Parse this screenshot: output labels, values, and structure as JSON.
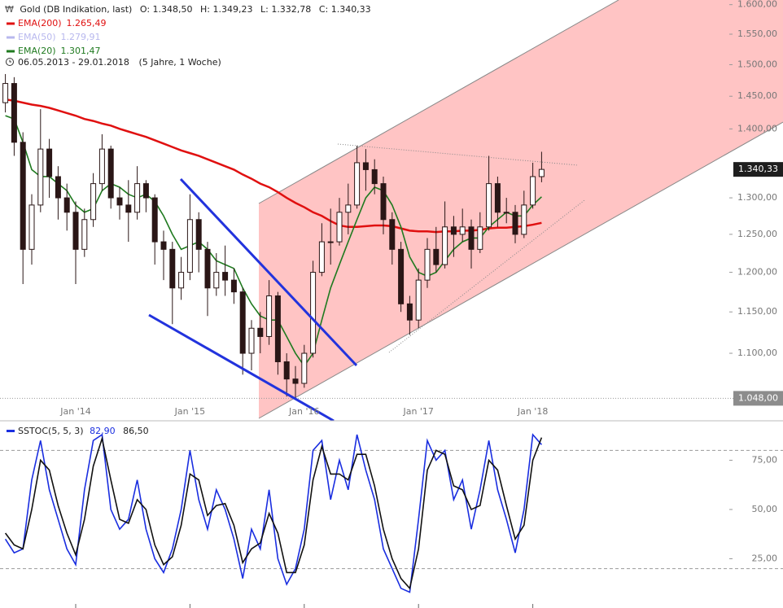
{
  "chart_data": [
    {
      "type": "candlestick",
      "title": "Gold (DB Indikation, last)",
      "quote_texts": [
        "O: 1.348,50",
        "H: 1.349,23",
        "L: 1.332,78",
        "C: 1.340,33"
      ],
      "period": "06.05.2013 - 29.01.2018",
      "period_note": "(5 Jahre, 1 Woche)",
      "categories": [
        null,
        null,
        null,
        null,
        null,
        null,
        null,
        null,
        "Jan '14",
        null,
        null,
        null,
        null,
        null,
        null,
        null,
        null,
        null,
        null,
        null,
        null,
        "Jan '15",
        null,
        null,
        null,
        null,
        null,
        null,
        null,
        null,
        null,
        null,
        null,
        null,
        "Jan '16",
        null,
        null,
        null,
        null,
        null,
        null,
        null,
        null,
        null,
        null,
        null,
        null,
        "Jan '17",
        null,
        null,
        null,
        null,
        null,
        null,
        null,
        null,
        null,
        null,
        null,
        null,
        "Jan '18",
        null
      ],
      "open": [
        1440,
        1470,
        1380,
        1230,
        1290,
        1370,
        1330,
        1300,
        1280,
        1230,
        1270,
        1320,
        1370,
        1300,
        1290,
        1280,
        1320,
        1300,
        1240,
        1230,
        1180,
        1200,
        1270,
        1230,
        1180,
        1200,
        1190,
        1175,
        1100,
        1130,
        1120,
        1170,
        1090,
        1070,
        1065,
        1100,
        1200,
        1240,
        1240,
        1280,
        1290,
        1350,
        1340,
        1320,
        1270,
        1230,
        1160,
        1140,
        1190,
        1230,
        1210,
        1260,
        1250,
        1260,
        1230,
        1260,
        1320,
        1280,
        1280,
        1250,
        1290,
        1330
      ],
      "high": [
        1485,
        1480,
        1395,
        1305,
        1430,
        1385,
        1345,
        1320,
        1295,
        1285,
        1335,
        1392,
        1375,
        1315,
        1325,
        1345,
        1325,
        1305,
        1255,
        1240,
        1220,
        1305,
        1280,
        1240,
        1225,
        1235,
        1205,
        1180,
        1140,
        1150,
        1190,
        1175,
        1100,
        1085,
        1110,
        1215,
        1265,
        1285,
        1300,
        1320,
        1375,
        1370,
        1355,
        1330,
        1280,
        1240,
        1170,
        1205,
        1245,
        1260,
        1295,
        1275,
        1285,
        1270,
        1280,
        1360,
        1330,
        1300,
        1290,
        1310,
        1350,
        1366
      ],
      "low": [
        1425,
        1360,
        1185,
        1210,
        1280,
        1300,
        1270,
        1255,
        1185,
        1220,
        1260,
        1310,
        1285,
        1270,
        1240,
        1270,
        1280,
        1210,
        1190,
        1135,
        1165,
        1190,
        1200,
        1145,
        1170,
        1170,
        1160,
        1075,
        1080,
        1100,
        1110,
        1075,
        1050,
        1048,
        1060,
        1095,
        1195,
        1210,
        1235,
        1250,
        1285,
        1310,
        1305,
        1250,
        1210,
        1150,
        1122,
        1130,
        1180,
        1200,
        1205,
        1220,
        1240,
        1205,
        1225,
        1255,
        1260,
        1265,
        1238,
        1245,
        1285,
        1322
      ],
      "close": [
        1470,
        1380,
        1230,
        1290,
        1370,
        1330,
        1300,
        1280,
        1230,
        1270,
        1320,
        1370,
        1300,
        1290,
        1280,
        1320,
        1300,
        1240,
        1230,
        1180,
        1200,
        1270,
        1230,
        1180,
        1200,
        1190,
        1175,
        1100,
        1130,
        1120,
        1170,
        1090,
        1070,
        1065,
        1100,
        1200,
        1240,
        1240,
        1280,
        1290,
        1350,
        1340,
        1320,
        1270,
        1230,
        1160,
        1140,
        1190,
        1230,
        1210,
        1260,
        1250,
        1260,
        1230,
        1260,
        1320,
        1280,
        1280,
        1250,
        1290,
        1330,
        1340.33
      ],
      "up_color": "#ffffff",
      "down_color": "#2a1616",
      "wick_color": "#2a1616",
      "series": [
        {
          "name": "EMA(200)",
          "color": "#e01010",
          "last_label": "1.265,49",
          "values": [
            1445,
            1443,
            1440,
            1437,
            1435,
            1432,
            1428,
            1424,
            1420,
            1415,
            1412,
            1408,
            1405,
            1400,
            1396,
            1392,
            1388,
            1383,
            1378,
            1373,
            1368,
            1364,
            1360,
            1355,
            1350,
            1345,
            1340,
            1333,
            1327,
            1320,
            1315,
            1308,
            1300,
            1293,
            1287,
            1280,
            1275,
            1268,
            1262,
            1260,
            1260,
            1261,
            1262,
            1262,
            1261,
            1258,
            1255,
            1254,
            1254,
            1253,
            1254,
            1254,
            1255,
            1255,
            1256,
            1258,
            1259,
            1259,
            1260,
            1261,
            1263,
            1265.49
          ]
        },
        {
          "name": "EMA(50)",
          "color": "#b8b8ee",
          "last_label": "1.279,91"
        },
        {
          "name": "EMA(20)",
          "color": "#1f7a1f",
          "last_label": "1.301,47",
          "values": [
            1420,
            1415,
            1380,
            1340,
            1330,
            1330,
            1320,
            1310,
            1290,
            1280,
            1285,
            1310,
            1320,
            1315,
            1305,
            1300,
            1305,
            1295,
            1275,
            1250,
            1230,
            1235,
            1240,
            1230,
            1215,
            1210,
            1205,
            1180,
            1160,
            1145,
            1140,
            1140,
            1120,
            1100,
            1085,
            1100,
            1140,
            1180,
            1210,
            1240,
            1270,
            1300,
            1315,
            1310,
            1290,
            1260,
            1220,
            1200,
            1195,
            1200,
            1215,
            1230,
            1240,
            1245,
            1245,
            1260,
            1270,
            1280,
            1275,
            1275,
            1290,
            1301.47
          ]
        }
      ],
      "log_scale": true,
      "ylim": [
        1023,
        1608
      ],
      "yticks": [
        {
          "value": 1100,
          "label": "1.100,00"
        },
        {
          "value": 1150,
          "label": "1.150,00"
        },
        {
          "value": 1200,
          "label": "1.200,00"
        },
        {
          "value": 1250,
          "label": "1.250,00"
        },
        {
          "value": 1300,
          "label": "1.300,00"
        },
        {
          "value": 1400,
          "label": "1.400,00"
        },
        {
          "value": 1450,
          "label": "1.450,00"
        },
        {
          "value": 1500,
          "label": "1.500,00"
        },
        {
          "value": 1550,
          "label": "1.550,00"
        },
        {
          "value": 1600,
          "label": "1.600,00"
        }
      ],
      "last_price": {
        "value": 1340.33,
        "label": "1.340,33"
      },
      "low_line": {
        "value": 1048,
        "label": "1.048,00"
      }
    },
    {
      "type": "line",
      "series": [
        {
          "name": "SSTOC(5, 5, 3)",
          "color": "#1a2ee0",
          "last_label": "82,90",
          "values": [
            35,
            28,
            30,
            65,
            85,
            60,
            45,
            30,
            22,
            60,
            85,
            88,
            50,
            40,
            45,
            65,
            40,
            25,
            18,
            30,
            50,
            80,
            55,
            40,
            60,
            50,
            35,
            15,
            40,
            30,
            60,
            25,
            12,
            20,
            40,
            80,
            85,
            55,
            75,
            60,
            88,
            70,
            55,
            30,
            20,
            10,
            8,
            45,
            85,
            75,
            80,
            55,
            65,
            40,
            60,
            85,
            60,
            45,
            28,
            50,
            88,
            82.9
          ]
        },
        {
          "color": "#111111",
          "last_label": "86,50",
          "values": [
            38,
            32,
            30,
            50,
            75,
            70,
            52,
            38,
            27,
            45,
            72,
            86,
            65,
            45,
            43,
            55,
            50,
            32,
            22,
            26,
            42,
            68,
            65,
            47,
            52,
            53,
            42,
            23,
            30,
            33,
            48,
            38,
            18,
            18,
            32,
            65,
            82,
            68,
            68,
            65,
            78,
            78,
            62,
            40,
            25,
            15,
            10,
            30,
            70,
            80,
            78,
            62,
            60,
            50,
            52,
            75,
            70,
            52,
            35,
            42,
            75,
            86.5
          ]
        }
      ],
      "levels": [
        80,
        20
      ],
      "ylim": [
        0,
        94.6
      ],
      "yticks": [
        {
          "value": 25,
          "label": "25,00"
        },
        {
          "value": 50,
          "label": "50,00"
        },
        {
          "value": 75,
          "label": "75,00"
        }
      ]
    }
  ]
}
